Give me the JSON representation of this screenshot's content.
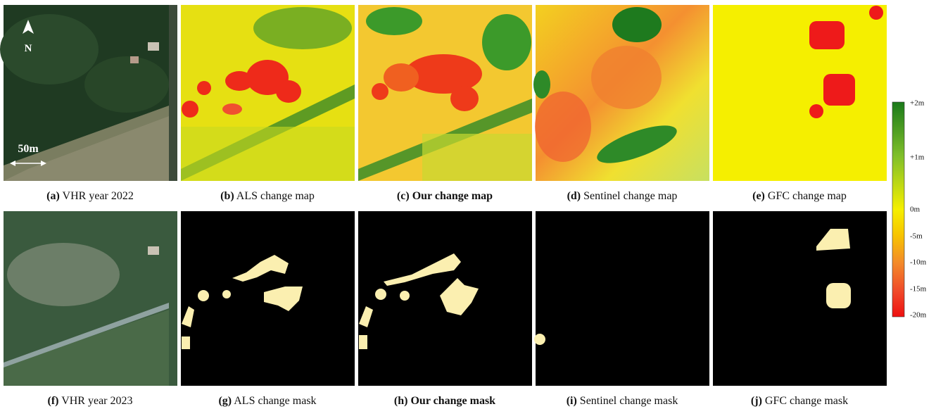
{
  "panels": [
    {
      "label": "(a)",
      "caption": "VHR year 2022"
    },
    {
      "label": "(b)",
      "caption": "ALS change map"
    },
    {
      "label": "(c)",
      "caption": "Our change map"
    },
    {
      "label": "(d)",
      "caption": "Sentinel change map"
    },
    {
      "label": "(e)",
      "caption": "GFC change map"
    },
    {
      "label": "(f)",
      "caption": "VHR year 2023"
    },
    {
      "label": "(g)",
      "caption": "ALS change mask"
    },
    {
      "label": "(h)",
      "caption": "Our change mask"
    },
    {
      "label": "(i)",
      "caption": "Sentinel change mask"
    },
    {
      "label": "(j)",
      "caption": "GFC change mask"
    }
  ],
  "annotations": {
    "north": "N",
    "scale": "50m"
  },
  "colorbar": {
    "labels": [
      "+2m",
      "+1m",
      "0m",
      "-5m",
      "-10m",
      "-15m",
      "-20m"
    ]
  }
}
